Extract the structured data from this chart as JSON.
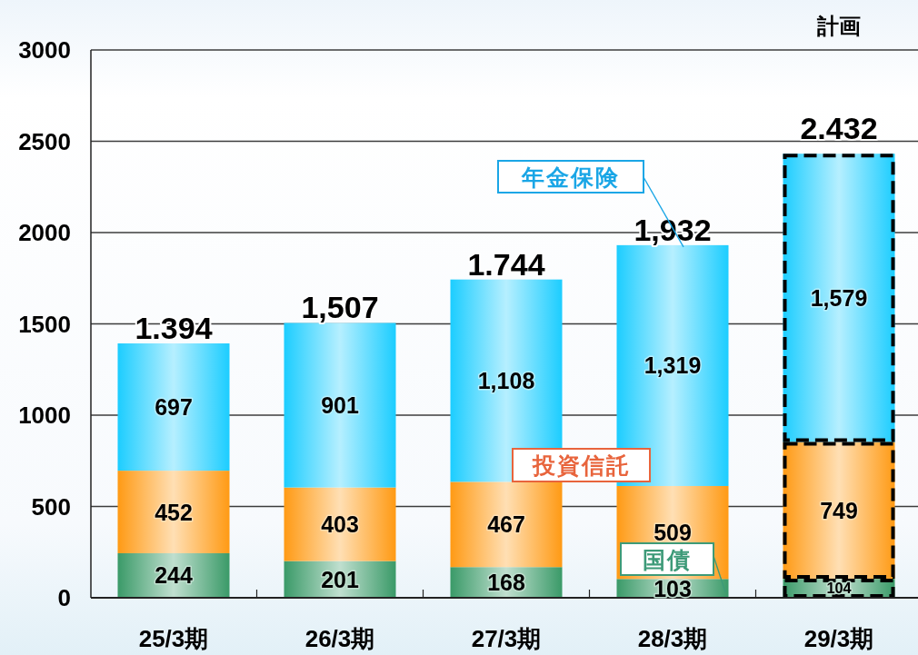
{
  "chart_data": {
    "type": "bar",
    "stacked": true,
    "categories": [
      "25/3期",
      "26/3期",
      "27/3期",
      "28/3期",
      "29/3期"
    ],
    "series": [
      {
        "name": "国債",
        "color": "#3a9a68",
        "values": [
          244,
          201,
          168,
          103,
          104
        ],
        "value_labels": [
          "244",
          "201",
          "168",
          "103",
          "104"
        ]
      },
      {
        "name": "投資信託",
        "color": "#ff9a14",
        "values": [
          452,
          403,
          467,
          509,
          749
        ],
        "value_labels": [
          "452",
          "403",
          "467",
          "509",
          "749"
        ]
      },
      {
        "name": "年金保険",
        "color": "#1ccdff",
        "values": [
          697,
          901,
          1108,
          1319,
          1579
        ],
        "value_labels": [
          "697",
          "901",
          "1,108",
          "1,319",
          "1,579"
        ]
      }
    ],
    "ylim": [
      0,
      3000
    ],
    "yticks": [
      0,
      500,
      1000,
      1500,
      2000,
      2500,
      3000
    ],
    "grid": "y",
    "annotations": [
      {
        "text": "1.394",
        "x": "25/3期",
        "y": 1393
      },
      {
        "text": "1,507",
        "x": "26/3期",
        "y": 1505
      },
      {
        "text": "1.744",
        "x": "27/3期",
        "y": 1743
      },
      {
        "text": "1,932",
        "x": "28/3期",
        "y": 1931
      },
      {
        "text": "2.432",
        "x": "29/3期",
        "y": 2432
      },
      "計画"
    ]
  }
}
